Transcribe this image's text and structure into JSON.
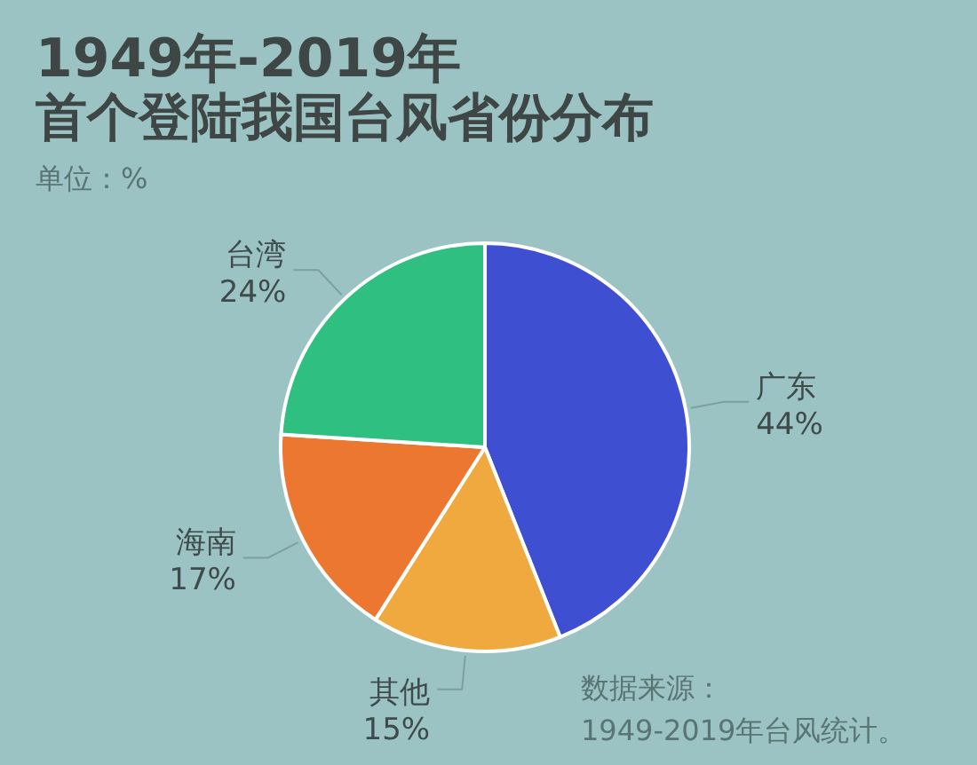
{
  "chart_data": {
    "type": "pie",
    "title": "1949年-2019年",
    "subtitle": "首个登陆我国台风省份分布",
    "categories": [
      "广东",
      "其他",
      "海南",
      "台湾"
    ],
    "values": [
      44,
      15,
      17,
      24
    ],
    "colors": [
      "#3e4fd2",
      "#f0a93f",
      "#ec7731",
      "#2fbf80"
    ],
    "value_labels": [
      "44%",
      "15%",
      "17%",
      "24%"
    ],
    "annotations": [
      "单位：%",
      "数据来源：\n1949-2019年台风统计。"
    ]
  }
}
